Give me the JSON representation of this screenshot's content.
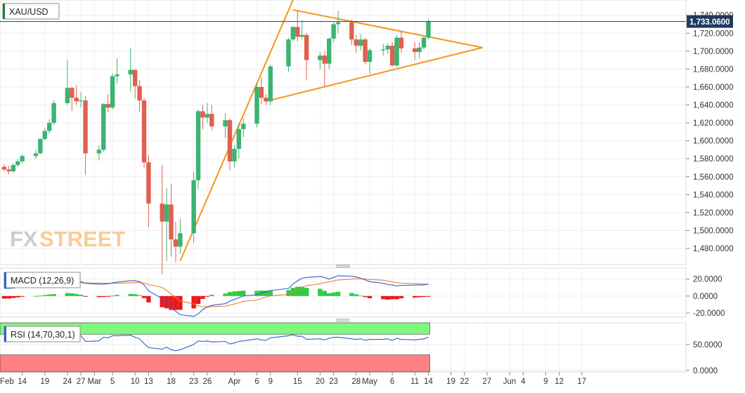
{
  "symbol": "XAU/USD",
  "watermark": {
    "fx": "FX",
    "street": "STREET"
  },
  "colors": {
    "up": "#3cb371",
    "down": "#e06050",
    "accent": "#f7941d",
    "price_line": "#1f3a5f",
    "macd_line": "#2f5fd0",
    "signal_line": "#f07d2f",
    "hist_up": "#2ecc40",
    "hist_down": "#e8191b",
    "rsi_line": "#2f5fd0",
    "rsi_overbought": "#7dfa7d",
    "rsi_oversold": "#ff8080"
  },
  "chart_data": [
    {
      "type": "candlestick",
      "title": "XAU/USD",
      "y_ticks": [
        "1,480.0000",
        "1,500.0000",
        "1,520.0000",
        "1,540.0000",
        "1,560.0000",
        "1,580.0000",
        "1,600.0000",
        "1,620.0000",
        "1,640.0000",
        "1,660.0000",
        "1,680.0000",
        "1,700.0000",
        "1,720.0000",
        "1,740.0000"
      ],
      "y_tick_values": [
        1480,
        1500,
        1520,
        1540,
        1560,
        1580,
        1600,
        1620,
        1640,
        1660,
        1680,
        1700,
        1720,
        1740
      ],
      "ylim": [
        1462,
        1757
      ],
      "last_price_label": "1,733.0600",
      "last_price": 1733.06,
      "x_ticks": [
        "Feb",
        "14",
        "19",
        "24",
        "27",
        "Mar",
        "5",
        "10",
        "13",
        "18",
        "23",
        "26",
        "Apr",
        "6",
        "9",
        "15",
        "20",
        "23",
        "28",
        "May",
        "6",
        "11",
        "14",
        "19",
        "22",
        "27",
        "Jun",
        "4",
        "9",
        "12",
        "17"
      ],
      "dates": [
        "2020-02-10",
        "2020-02-11",
        "2020-02-12",
        "2020-02-13",
        "2020-02-14",
        "2020-02-17",
        "2020-02-18",
        "2020-02-19",
        "2020-02-20",
        "2020-02-21",
        "2020-02-24",
        "2020-02-25",
        "2020-02-26",
        "2020-02-27",
        "2020-02-28",
        "2020-03-02",
        "2020-03-03",
        "2020-03-04",
        "2020-03-05",
        "2020-03-06",
        "2020-03-09",
        "2020-03-10",
        "2020-03-11",
        "2020-03-12",
        "2020-03-13",
        "2020-03-16",
        "2020-03-17",
        "2020-03-18",
        "2020-03-19",
        "2020-03-20",
        "2020-03-23",
        "2020-03-24",
        "2020-03-25",
        "2020-03-26",
        "2020-03-27",
        "2020-03-30",
        "2020-03-31",
        "2020-04-01",
        "2020-04-02",
        "2020-04-03",
        "2020-04-06",
        "2020-04-07",
        "2020-04-08",
        "2020-04-09",
        "2020-04-13",
        "2020-04-14",
        "2020-04-15",
        "2020-04-16",
        "2020-04-17",
        "2020-04-20",
        "2020-04-21",
        "2020-04-22",
        "2020-04-23",
        "2020-04-24",
        "2020-04-27",
        "2020-04-28",
        "2020-04-29",
        "2020-04-30",
        "2020-05-01",
        "2020-05-04",
        "2020-05-05",
        "2020-05-06",
        "2020-05-07",
        "2020-05-08",
        "2020-05-11",
        "2020-05-12",
        "2020-05-13",
        "2020-05-14"
      ],
      "candles": [
        [
          1571,
          1574,
          1566,
          1568
        ],
        [
          1568,
          1572,
          1563,
          1566
        ],
        [
          1566,
          1575,
          1564,
          1573
        ],
        [
          1573,
          1580,
          1571,
          1577
        ],
        [
          1577,
          1585,
          1575,
          1583
        ],
        [
          1583,
          1590,
          1580,
          1586
        ],
        [
          1586,
          1603,
          1585,
          1602
        ],
        [
          1602,
          1614,
          1600,
          1611
        ],
        [
          1611,
          1624,
          1608,
          1620
        ],
        [
          1620,
          1645,
          1618,
          1642
        ],
        [
          1642,
          1690,
          1640,
          1659
        ],
        [
          1659,
          1660,
          1633,
          1648
        ],
        [
          1648,
          1662,
          1640,
          1644
        ],
        [
          1644,
          1654,
          1637,
          1645
        ],
        [
          1645,
          1650,
          1562,
          1586
        ],
        [
          1586,
          1595,
          1578,
          1590
        ],
        [
          1590,
          1642,
          1588,
          1641
        ],
        [
          1641,
          1652,
          1632,
          1637
        ],
        [
          1637,
          1675,
          1635,
          1672
        ],
        [
          1672,
          1692,
          1664,
          1674
        ],
        [
          1674,
          1704,
          1655,
          1679
        ],
        [
          1679,
          1680,
          1647,
          1661
        ],
        [
          1661,
          1668,
          1632,
          1645
        ],
        [
          1645,
          1648,
          1570,
          1576
        ],
        [
          1576,
          1584,
          1504,
          1530
        ],
        [
          1530,
          1573,
          1451,
          1510
        ],
        [
          1510,
          1547,
          1466,
          1529
        ],
        [
          1529,
          1552,
          1471,
          1490
        ],
        [
          1490,
          1509,
          1464,
          1482
        ],
        [
          1482,
          1513,
          1474,
          1497
        ],
        [
          1497,
          1565,
          1486,
          1556
        ],
        [
          1556,
          1635,
          1546,
          1633
        ],
        [
          1633,
          1640,
          1613,
          1626
        ],
        [
          1626,
          1642,
          1620,
          1630
        ],
        [
          1630,
          1640,
          1612,
          1616
        ],
        [
          1616,
          1631,
          1603,
          1623
        ],
        [
          1623,
          1625,
          1567,
          1577
        ],
        [
          1577,
          1595,
          1570,
          1591
        ],
        [
          1591,
          1620,
          1580,
          1613
        ],
        [
          1613,
          1625,
          1604,
          1619
        ],
        [
          1619,
          1664,
          1615,
          1660
        ],
        [
          1660,
          1671,
          1641,
          1648
        ],
        [
          1648,
          1652,
          1640,
          1644
        ],
        [
          1644,
          1685,
          1640,
          1683
        ],
        [
          1683,
          1715,
          1677,
          1713
        ],
        [
          1713,
          1727,
          1711,
          1727
        ],
        [
          1727,
          1745,
          1711,
          1716
        ],
        [
          1716,
          1734,
          1713,
          1718
        ],
        [
          1718,
          1720,
          1668,
          1690
        ],
        [
          1690,
          1699,
          1680,
          1695
        ],
        [
          1695,
          1700,
          1660,
          1686
        ],
        [
          1686,
          1715,
          1680,
          1714
        ],
        [
          1714,
          1732,
          1710,
          1730
        ],
        [
          1730,
          1745,
          1720,
          1732
        ],
        [
          1732,
          1735,
          1707,
          1713
        ],
        [
          1713,
          1718,
          1698,
          1706
        ],
        [
          1706,
          1719,
          1701,
          1713
        ],
        [
          1713,
          1715,
          1685,
          1688
        ],
        [
          1688,
          1703,
          1675,
          1701
        ],
        [
          1701,
          1708,
          1695,
          1702
        ],
        [
          1702,
          1709,
          1697,
          1706
        ],
        [
          1706,
          1710,
          1683,
          1684
        ],
        [
          1684,
          1718,
          1682,
          1715
        ],
        [
          1715,
          1722,
          1698,
          1703
        ],
        [
          1703,
          1710,
          1690,
          1699
        ],
        [
          1699,
          1710,
          1692,
          1704
        ],
        [
          1704,
          1716,
          1702,
          1715
        ],
        [
          1715,
          1736,
          1713,
          1733
        ]
      ],
      "trend_lines": [
        {
          "name": "rising-support",
          "points": [
            [
              "2020-03-20",
              1466
            ],
            [
              "2020-04-14",
              1757
            ]
          ]
        },
        {
          "name": "wedge-resistance",
          "points": [
            [
              "2020-04-14",
              1746
            ],
            [
              "2020-05-26",
              1704
            ]
          ]
        },
        {
          "name": "wedge-support",
          "points": [
            [
              "2020-04-08",
              1644
            ],
            [
              "2020-05-26",
              1704
            ]
          ]
        }
      ]
    },
    {
      "type": "line",
      "title": "MACD (12,26,9)",
      "y_ticks": [
        "20.0000",
        "0.0000",
        "-20.0000"
      ],
      "y_tick_values": [
        20,
        0,
        -20
      ],
      "ylim": [
        -25,
        33
      ],
      "series": [
        {
          "name": "macd",
          "values": [
            9,
            9,
            9.5,
            10,
            11,
            11.5,
            12,
            13,
            14,
            15,
            17,
            17.5,
            17.5,
            17,
            15,
            14,
            14,
            14.5,
            15.5,
            16.5,
            18,
            18,
            17,
            13,
            6,
            -3,
            -8,
            -14,
            -18,
            -22,
            -24,
            -21,
            -16,
            -13,
            -11,
            -9,
            -6,
            -4,
            -2,
            0,
            1.5,
            3.5,
            5,
            6.5,
            9,
            14,
            18,
            21,
            22,
            23,
            22,
            20,
            22,
            24,
            23.5,
            22.5,
            21,
            19,
            17,
            15,
            13.5,
            13,
            12,
            12.5,
            13,
            13,
            13,
            14
          ]
        },
        {
          "name": "signal",
          "values": [
            12,
            12,
            11.8,
            11.6,
            11.5,
            11.4,
            11.5,
            11.8,
            12.2,
            12.7,
            13.5,
            14.3,
            15,
            15.5,
            15.4,
            15.3,
            15.1,
            15,
            15,
            15.1,
            15.5,
            15.8,
            16,
            15.4,
            13.5,
            10.2,
            6.5,
            2.4,
            -1.6,
            -5.7,
            -9.4,
            -11.7,
            -12.6,
            -12.8,
            -12.5,
            -11.9,
            -10.7,
            -9.4,
            -7.9,
            -6.3,
            -4.7,
            -3,
            -1.4,
            0.2,
            2,
            4.4,
            7.1,
            9.9,
            12.3,
            14.4,
            15.9,
            16.7,
            17.8,
            19,
            19.9,
            20.4,
            20.5,
            20.2,
            19.6,
            18.7,
            17.7,
            16.8,
            15.8,
            15.2,
            14.8,
            14.4,
            14.1,
            14.1
          ]
        },
        {
          "name": "histogram",
          "values": [
            -3,
            -3,
            -2.3,
            -1.6,
            -0.5,
            0.1,
            0.5,
            1.2,
            1.8,
            2.3,
            3.5,
            3.2,
            2.5,
            1.5,
            -0.4,
            -1.3,
            -1.1,
            -0.5,
            0.5,
            1.4,
            2.5,
            2.2,
            1,
            -2.4,
            -7.5,
            -13.2,
            -14.5,
            -16.4,
            -16.4,
            -16.3,
            -14.6,
            -9.3,
            -3.4,
            -0.2,
            1.5,
            2.9,
            4.7,
            5.4,
            5.9,
            6.3,
            6.2,
            6.5,
            6.4,
            6.3,
            7,
            9.6,
            10.9,
            11.1,
            9.7,
            8.6,
            6.1,
            3.3,
            4.2,
            5,
            3.6,
            2.1,
            0.5,
            -1.2,
            -2.6,
            -3.7,
            -4.2,
            -3.8,
            -3.8,
            -2.7,
            -1.8,
            -1.4,
            -1.1,
            -0.1
          ]
        }
      ]
    },
    {
      "type": "line",
      "title": "RSI (14,70,30,1)",
      "y_ticks": [
        "50.0000",
        "0.0000"
      ],
      "y_tick_values": [
        50,
        0
      ],
      "ylim": [
        -3,
        92
      ],
      "overbought": 70,
      "oversold": 30,
      "series": [
        {
          "name": "rsi",
          "values": [
            62,
            61,
            62,
            63,
            64,
            64,
            66,
            68,
            69,
            71,
            72,
            69,
            67,
            67,
            56,
            57,
            64,
            63,
            67,
            67,
            68,
            64,
            61,
            52,
            44,
            41,
            45,
            40,
            38,
            40,
            50,
            57,
            56,
            57,
            55,
            56,
            51,
            53,
            56,
            57,
            61,
            59,
            58,
            63,
            67,
            69,
            66,
            66,
            60,
            61,
            59,
            62,
            64,
            64,
            61,
            60,
            61,
            58,
            60,
            60,
            61,
            58,
            62,
            60,
            59,
            60,
            61,
            64
          ]
        }
      ]
    }
  ]
}
